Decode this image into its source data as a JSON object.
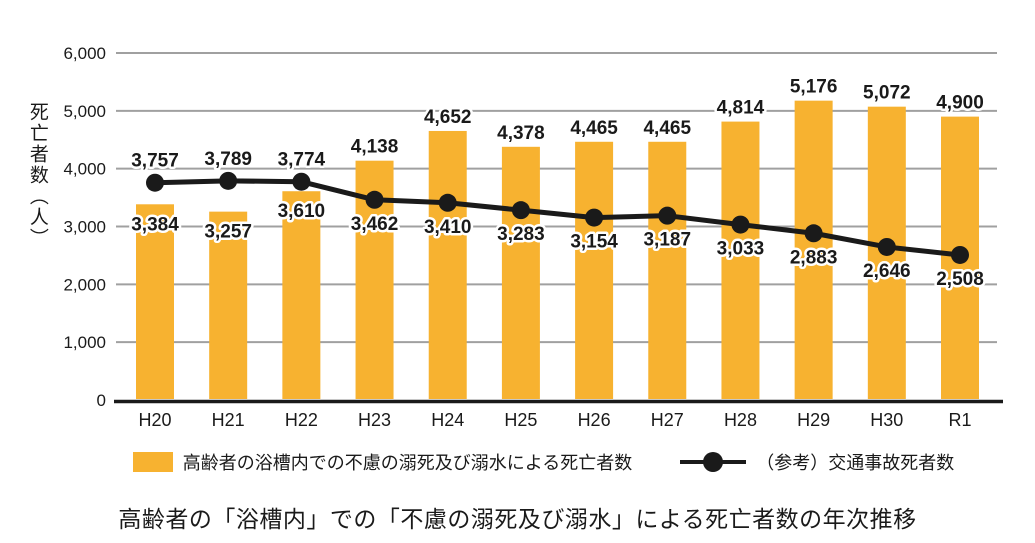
{
  "colors": {
    "bar": "#F7B230",
    "bar_label": "#C4152E",
    "line": "#1A1A1A",
    "line_label": "#1B9ED9",
    "grid": "#A0A0A0",
    "axis": "#1A1A1A",
    "text": "#1A1A1A"
  },
  "chart_data": {
    "type": "bar+line",
    "categories": [
      "H20",
      "H21",
      "H22",
      "H23",
      "H24",
      "H25",
      "H26",
      "H27",
      "H28",
      "H29",
      "H30",
      "R1"
    ],
    "series": [
      {
        "name": "高齢者の浴槽内での不慮の溺死及び溺水による死亡者数",
        "type": "bar",
        "values": [
          3384,
          3257,
          3610,
          4138,
          4652,
          4378,
          4465,
          4465,
          4814,
          5176,
          5072,
          4900
        ],
        "label_position": [
          "inside",
          "inside",
          "inside",
          "above",
          "above",
          "above",
          "above",
          "above",
          "above",
          "above",
          "above",
          "above"
        ]
      },
      {
        "name": "（参考）交通事故死者数",
        "type": "line",
        "values": [
          3757,
          3789,
          3774,
          3462,
          3410,
          3283,
          3154,
          3187,
          3033,
          2883,
          2646,
          2508
        ],
        "label_position": [
          "above",
          "above",
          "above",
          "below",
          "below",
          "below",
          "below",
          "below",
          "below",
          "below",
          "below",
          "below"
        ]
      }
    ],
    "title": "高齢者の「浴槽内」での「不慮の溺死及び溺水」による死亡者数の年次推移",
    "xlabel": "",
    "ylabel": "死亡者数（人）",
    "ylim": [
      0,
      6000
    ],
    "yticks": [
      0,
      1000,
      2000,
      3000,
      4000,
      5000,
      6000
    ],
    "grid": true,
    "legend_position": "bottom"
  }
}
